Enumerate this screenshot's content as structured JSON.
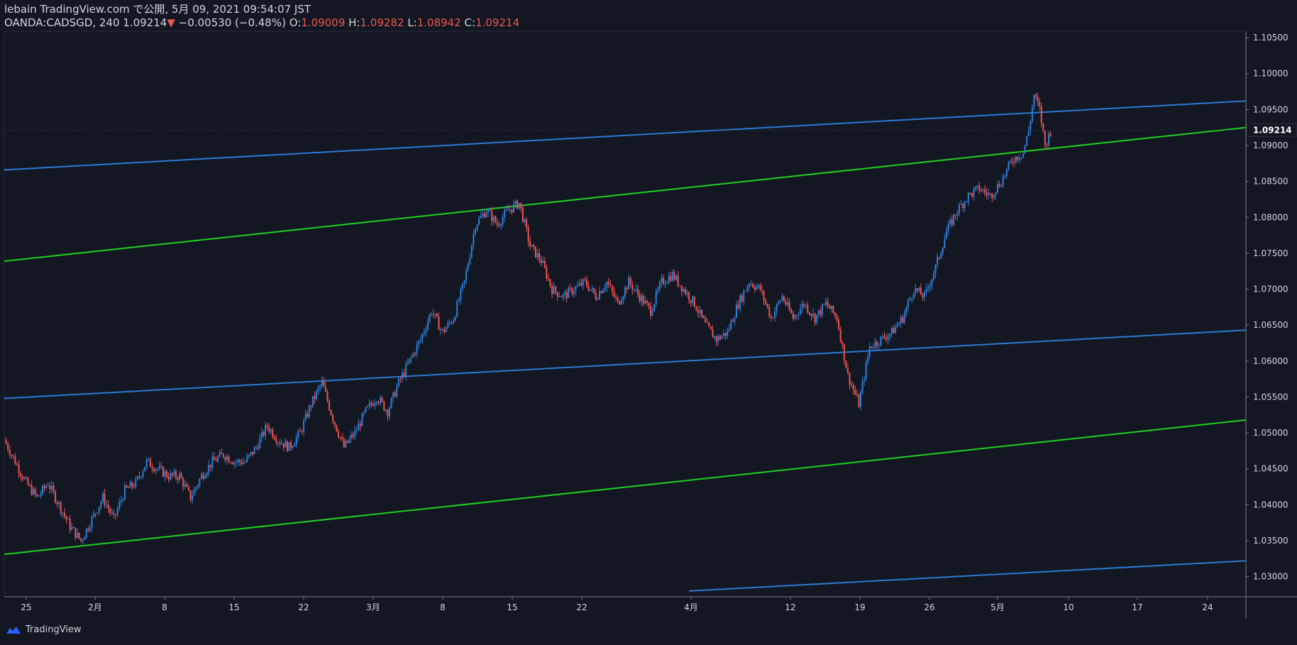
{
  "header": {
    "line1": "lebain TradingView.com で公開, 5月 09, 2021 09:54:07 JST",
    "symbol": "OANDA:CADSGD, 240",
    "last": "1.09214",
    "change": "−0.00530 (−0.48%)",
    "o_label": "O:",
    "o_value": "1.09009",
    "h_label": "H:",
    "h_value": "1.09282",
    "l_label": "L:",
    "l_value": "1.08942",
    "c_label": "C:",
    "c_value": "1.09214"
  },
  "footer": {
    "brand": "TradingView"
  },
  "colors": {
    "background": "#131722",
    "up": "#2f7fd8",
    "down": "#ef5350",
    "channel_blue": "#2979d2",
    "channel_green": "#20d020",
    "axis": "#787b86"
  },
  "chart_data": {
    "type": "candlestick",
    "symbol": "OANDA:CADSGD",
    "interval": "240",
    "ylim": [
      1.0272,
      1.1059
    ],
    "y_ticks": [
      "1.03000",
      "1.03500",
      "1.04000",
      "1.04500",
      "1.05000",
      "1.05500",
      "1.06000",
      "1.06500",
      "1.07000",
      "1.07500",
      "1.08000",
      "1.08500",
      "1.09000",
      "1.09500",
      "1.10000",
      "1.10500"
    ],
    "x_ticks": [
      "25",
      "2月",
      "8",
      "15",
      "22",
      "3月",
      "8",
      "15",
      "22",
      "4月",
      "12",
      "19",
      "26",
      "5月",
      "10",
      "17",
      "24"
    ],
    "last_price_label": "1.09214",
    "close_path": [
      [
        0,
        1.049
      ],
      [
        6,
        1.046
      ],
      [
        12,
        1.043
      ],
      [
        18,
        1.041
      ],
      [
        24,
        1.043
      ],
      [
        30,
        1.04
      ],
      [
        36,
        1.037
      ],
      [
        42,
        1.035
      ],
      [
        48,
        1.038
      ],
      [
        54,
        1.041
      ],
      [
        60,
        1.038
      ],
      [
        66,
        1.042
      ],
      [
        72,
        1.043
      ],
      [
        78,
        1.046
      ],
      [
        84,
        1.045
      ],
      [
        90,
        1.044
      ],
      [
        96,
        1.044
      ],
      [
        102,
        1.041
      ],
      [
        108,
        1.044
      ],
      [
        114,
        1.046
      ],
      [
        120,
        1.047
      ],
      [
        126,
        1.046
      ],
      [
        132,
        1.046
      ],
      [
        138,
        1.048
      ],
      [
        144,
        1.051
      ],
      [
        150,
        1.049
      ],
      [
        156,
        1.048
      ],
      [
        162,
        1.05
      ],
      [
        168,
        1.054
      ],
      [
        174,
        1.057
      ],
      [
        180,
        1.052
      ],
      [
        186,
        1.048
      ],
      [
        192,
        1.05
      ],
      [
        198,
        1.053
      ],
      [
        204,
        1.055
      ],
      [
        210,
        1.053
      ],
      [
        216,
        1.057
      ],
      [
        222,
        1.06
      ],
      [
        228,
        1.063
      ],
      [
        234,
        1.067
      ],
      [
        240,
        1.064
      ],
      [
        246,
        1.066
      ],
      [
        252,
        1.071
      ],
      [
        258,
        1.079
      ],
      [
        264,
        1.081
      ],
      [
        270,
        1.079
      ],
      [
        276,
        1.081
      ],
      [
        282,
        1.082
      ],
      [
        288,
        1.076
      ],
      [
        294,
        1.074
      ],
      [
        300,
        1.07
      ],
      [
        306,
        1.069
      ],
      [
        312,
        1.07
      ],
      [
        318,
        1.071
      ],
      [
        324,
        1.069
      ],
      [
        330,
        1.071
      ],
      [
        336,
        1.068
      ],
      [
        342,
        1.071
      ],
      [
        348,
        1.069
      ],
      [
        354,
        1.067
      ],
      [
        360,
        1.071
      ],
      [
        366,
        1.072
      ],
      [
        372,
        1.07
      ],
      [
        378,
        1.068
      ],
      [
        384,
        1.065
      ],
      [
        390,
        1.063
      ],
      [
        396,
        1.064
      ],
      [
        402,
        1.068
      ],
      [
        408,
        1.071
      ],
      [
        414,
        1.07
      ],
      [
        420,
        1.066
      ],
      [
        426,
        1.069
      ],
      [
        432,
        1.066
      ],
      [
        438,
        1.068
      ],
      [
        444,
        1.066
      ],
      [
        450,
        1.068
      ],
      [
        456,
        1.066
      ],
      [
        462,
        1.058
      ],
      [
        468,
        1.054
      ],
      [
        474,
        1.062
      ],
      [
        480,
        1.063
      ],
      [
        486,
        1.064
      ],
      [
        492,
        1.066
      ],
      [
        498,
        1.07
      ],
      [
        504,
        1.069
      ],
      [
        510,
        1.073
      ],
      [
        516,
        1.078
      ],
      [
        522,
        1.081
      ],
      [
        528,
        1.083
      ],
      [
        534,
        1.084
      ],
      [
        540,
        1.083
      ],
      [
        546,
        1.085
      ],
      [
        552,
        1.088
      ],
      [
        558,
        1.089
      ],
      [
        561,
        1.092
      ],
      [
        564,
        1.097
      ],
      [
        567,
        1.095
      ],
      [
        570,
        1.09
      ],
      [
        573,
        1.092
      ]
    ],
    "x_span": [
      0,
      680
    ],
    "channel_lines": [
      {
        "color": "blue",
        "x": [
          0,
          680
        ],
        "y": [
          1.0866,
          1.0962
        ]
      },
      {
        "color": "green",
        "x": [
          0,
          680
        ],
        "y": [
          1.0739,
          1.0925
        ]
      },
      {
        "color": "blue",
        "x": [
          0,
          680
        ],
        "y": [
          1.0548,
          1.0643
        ]
      },
      {
        "color": "green",
        "x": [
          0,
          680
        ],
        "y": [
          1.0331,
          1.0518
        ]
      },
      {
        "color": "blue",
        "x": [
          375,
          680
        ],
        "y": [
          1.028,
          1.0322
        ]
      }
    ]
  }
}
